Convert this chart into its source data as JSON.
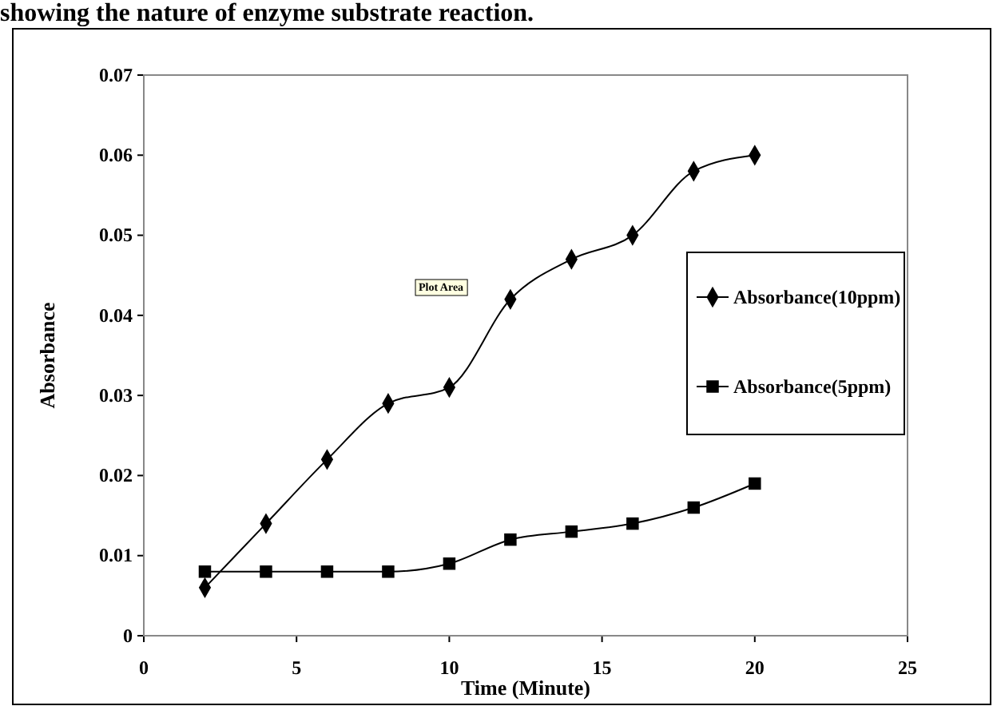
{
  "chart_data": {
    "type": "line",
    "title": "showing the nature of enzyme substrate reaction.",
    "xlabel": "Time (Minute)",
    "ylabel": "Absorbance",
    "annotations": [
      "Plot Area"
    ],
    "x": [
      2,
      4,
      6,
      8,
      10,
      12,
      14,
      16,
      18,
      20
    ],
    "series": [
      {
        "name": "Absorbance(10ppm)",
        "color": "#000000",
        "marker": "diamond",
        "values": [
          0.006,
          0.014,
          0.022,
          0.029,
          0.031,
          0.042,
          0.047,
          0.05,
          0.058,
          0.06
        ]
      },
      {
        "name": "Absorbance(5ppm)",
        "color": "#000000",
        "marker": "square",
        "values": [
          0.008,
          0.008,
          0.008,
          0.008,
          0.009,
          0.012,
          0.013,
          0.014,
          0.016,
          0.019
        ]
      }
    ],
    "xlim": [
      0,
      25
    ],
    "xticks": [
      0,
      5,
      10,
      15,
      20,
      25
    ],
    "ylim": [
      0,
      0.07
    ],
    "yticks": [
      0,
      0.01,
      0.02,
      0.03,
      0.04,
      0.05,
      0.06,
      0.07
    ],
    "grid": false,
    "legend": "right",
    "line_style": "solid"
  }
}
